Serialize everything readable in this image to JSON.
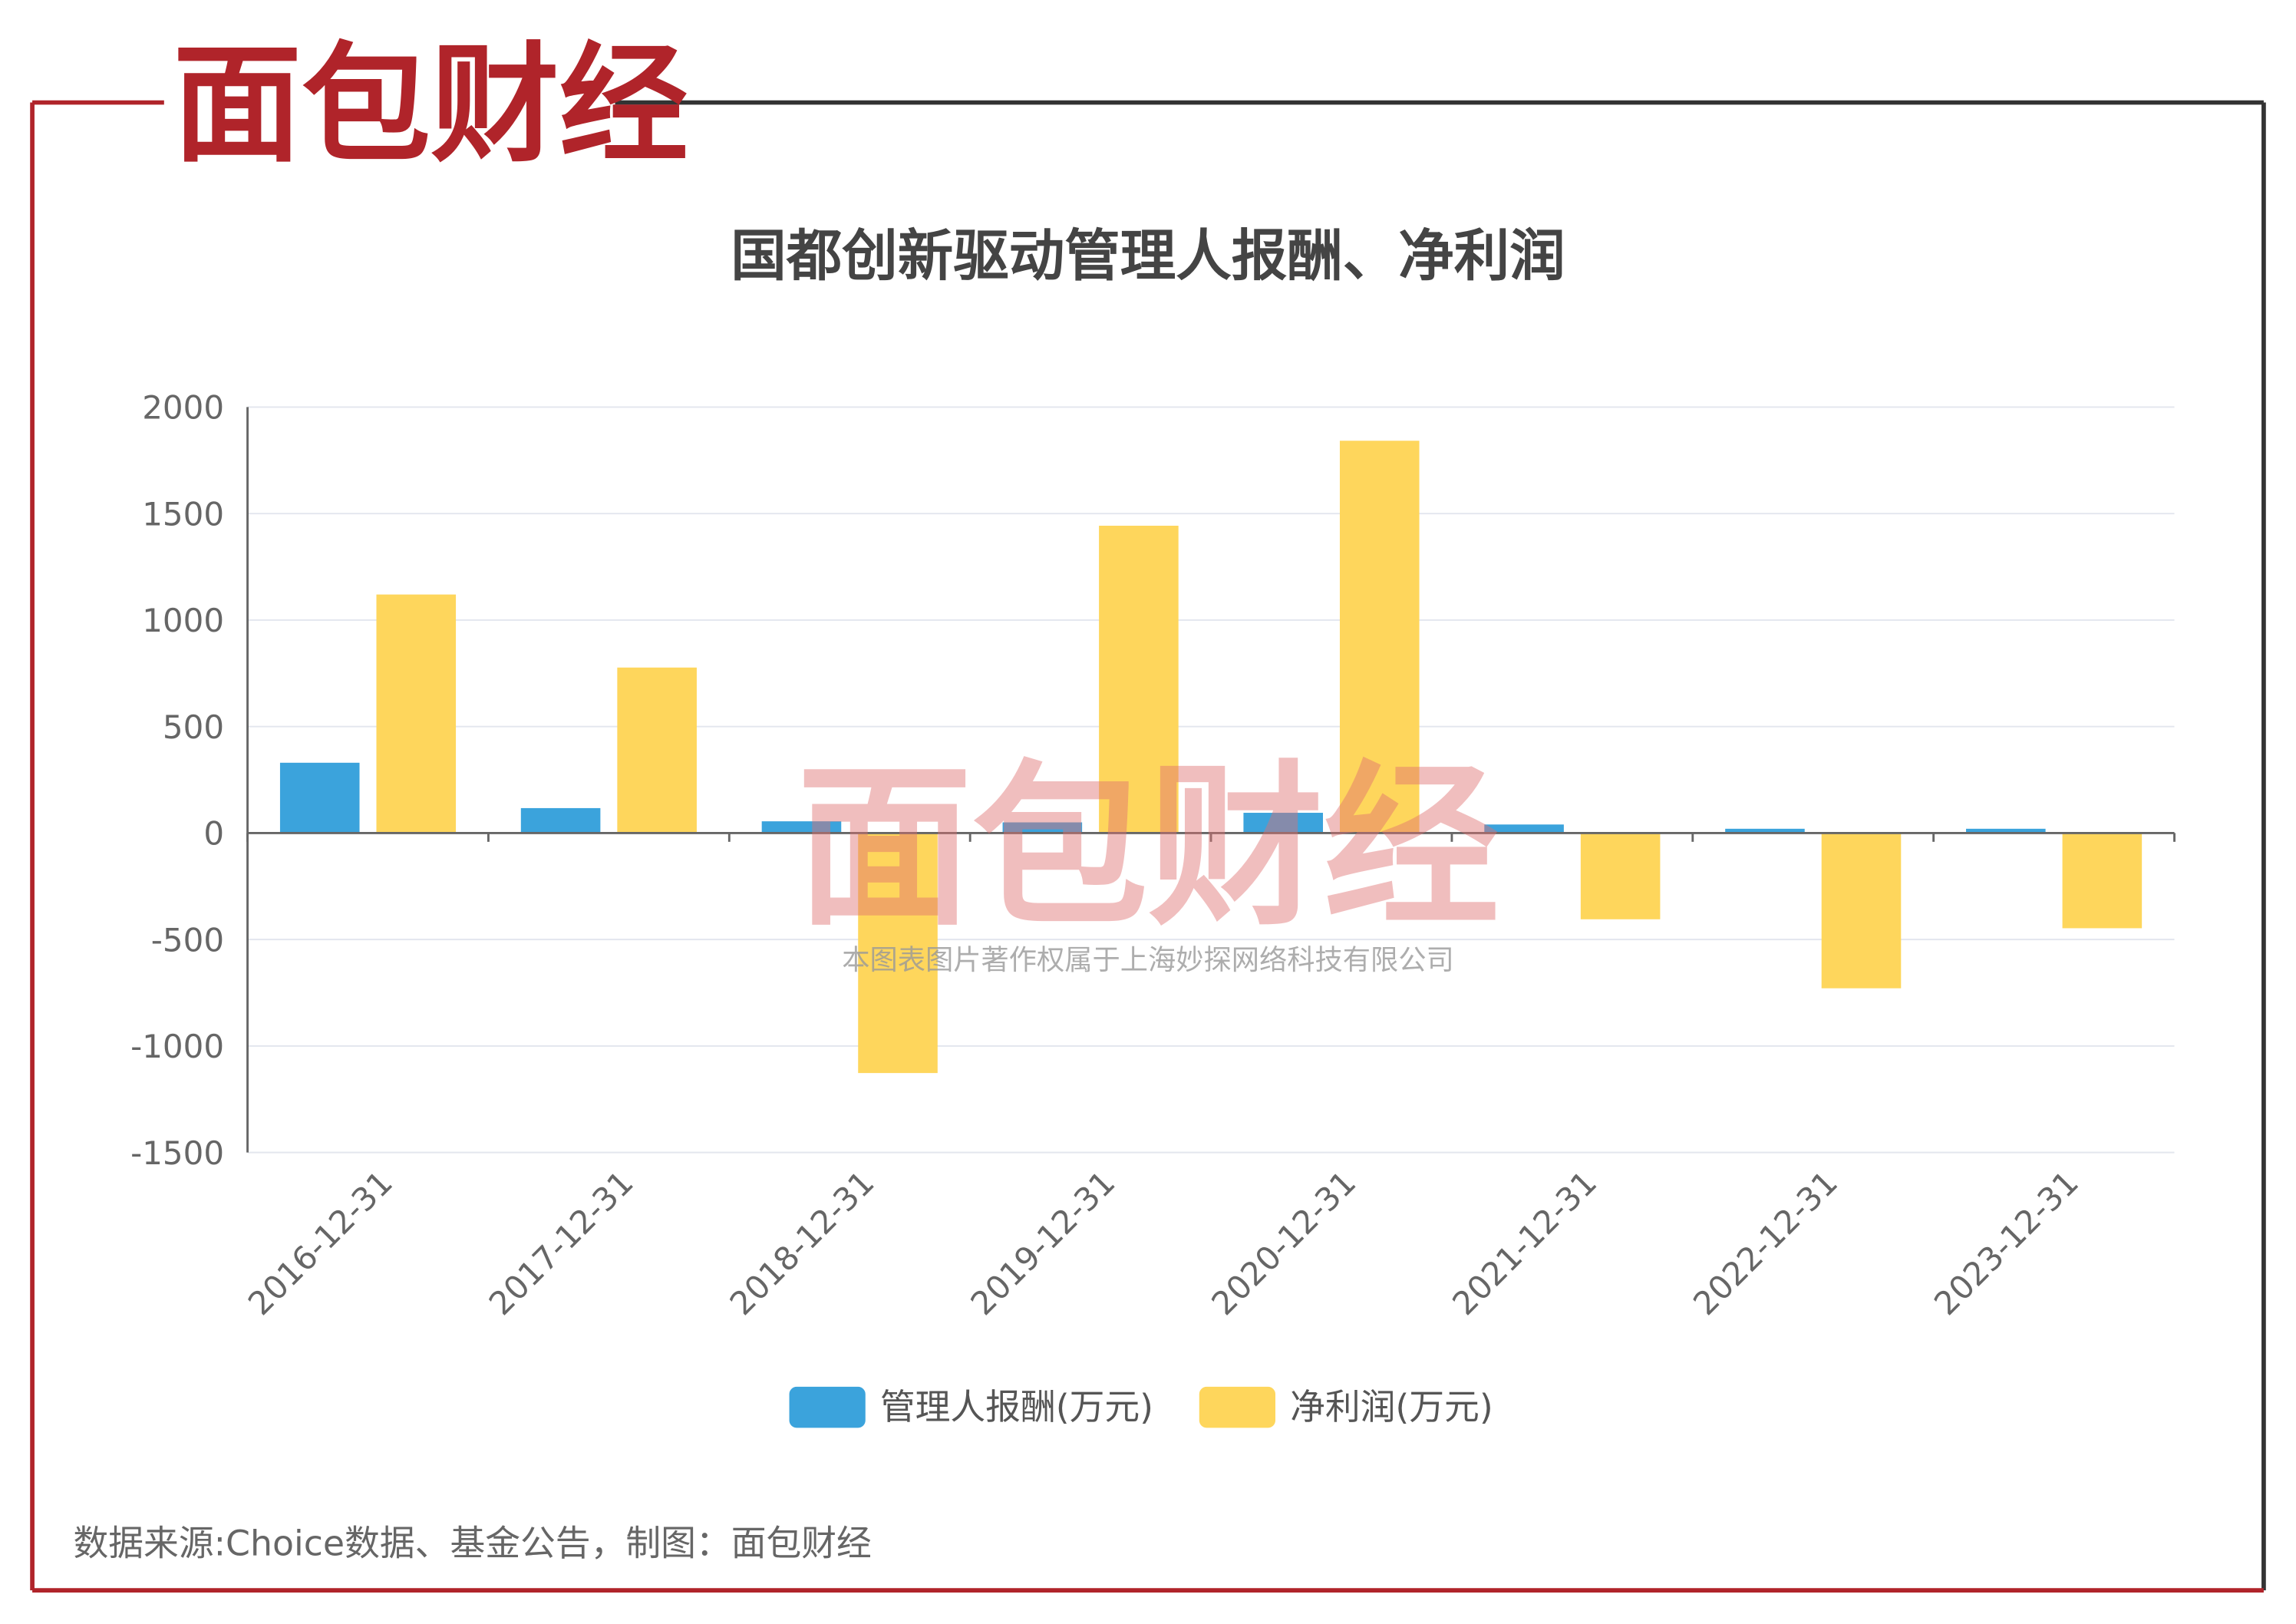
{
  "brand": "面包财经",
  "chart_data": {
    "type": "bar",
    "title": "国都创新驱动管理人报酬、净利润",
    "categories": [
      "2016-12-31",
      "2017-12-31",
      "2018-12-31",
      "2019-12-31",
      "2020-12-31",
      "2021-12-31",
      "2022-12-31",
      "2023-12-31"
    ],
    "series": [
      {
        "name": "管理人报酬(万元)",
        "color": "#3ba3dc",
        "values": [
          330,
          117,
          55,
          50,
          95,
          40,
          20,
          20
        ]
      },
      {
        "name": "净利润(万元)",
        "color": "#fed65c",
        "values": [
          1120,
          777,
          -1127,
          1443,
          1842,
          -405,
          -729,
          -447
        ]
      }
    ],
    "ylim": [
      -1500,
      2000
    ],
    "yticks": [
      -1500,
      -1000,
      -500,
      0,
      500,
      1000,
      1500,
      2000
    ],
    "grid": true,
    "legend": "bottom",
    "watermark": "本图表图片著作权属于上海妙探网络科技有限公司",
    "source": "数据来源:Choice数据、基金公告，制图：面包财经"
  }
}
